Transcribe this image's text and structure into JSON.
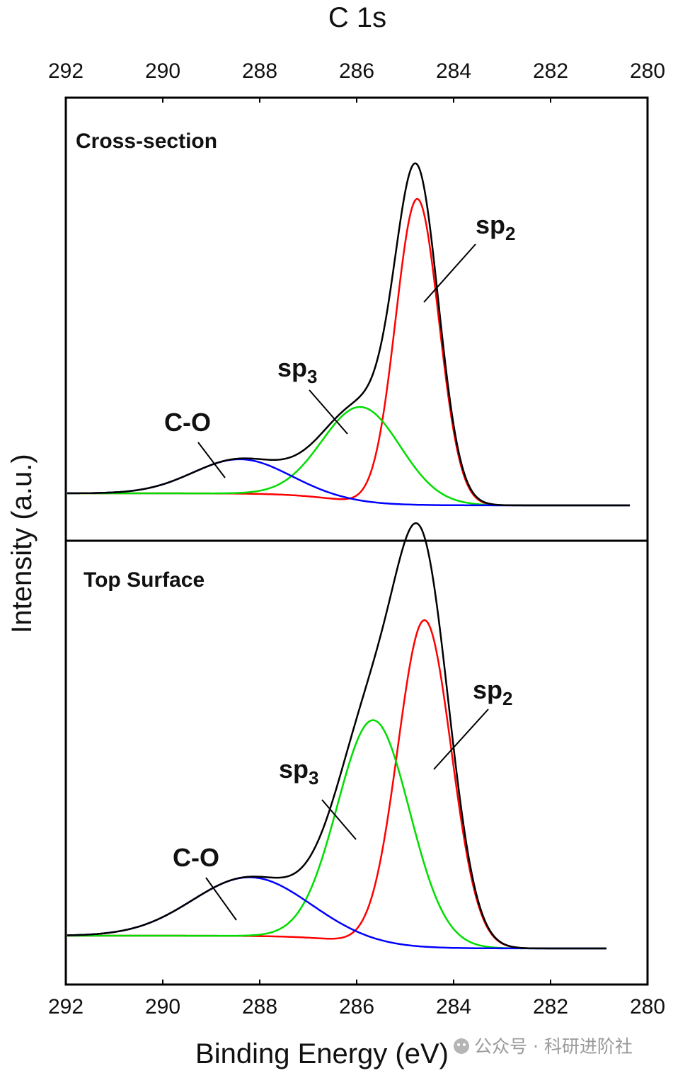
{
  "chart_data": {
    "type": "line",
    "title": "C 1s",
    "xlabel": "Binding Energy (eV)",
    "ylabel": "Intensity (a.u.)",
    "xlim": [
      292,
      280
    ],
    "xticks": [
      292,
      290,
      288,
      286,
      284,
      282,
      280
    ],
    "x_reversed": true,
    "panels": [
      {
        "label": "Cross-section",
        "baseline": {
          "start": 1.0,
          "end": 0.0,
          "center": 286.4,
          "width": 0.55
        },
        "components": [
          {
            "name": "sp2",
            "label_main": "sp",
            "label_sub": "2",
            "center": 284.75,
            "amplitude": 12.9,
            "fwhm": 1.05,
            "color": "#ff0000"
          },
          {
            "name": "sp3",
            "label_main": "sp",
            "label_sub": "3",
            "center": 285.9,
            "amplitude": 4.0,
            "fwhm": 1.9,
            "color": "#00dd00"
          },
          {
            "name": "C-O",
            "label_main": "C-O",
            "label_sub": "",
            "center": 288.4,
            "amplitude": 1.45,
            "fwhm": 2.3,
            "color": "#0000ff"
          }
        ],
        "envelope_color": "#000000"
      },
      {
        "label": "Top Surface",
        "baseline": {
          "start": 1.0,
          "end": 0.0,
          "center": 286.0,
          "width": 0.6
        },
        "components": [
          {
            "name": "sp2",
            "label_main": "sp",
            "label_sub": "2",
            "center": 284.6,
            "amplitude": 11.7,
            "fwhm": 1.3,
            "color": "#ff0000"
          },
          {
            "name": "sp3",
            "label_main": "sp",
            "label_sub": "3",
            "center": 285.65,
            "amplitude": 8.0,
            "fwhm": 1.75,
            "color": "#00dd00"
          },
          {
            "name": "C-O",
            "label_main": "C-O",
            "label_sub": "",
            "center": 288.2,
            "amplitude": 2.1,
            "fwhm": 2.8,
            "color": "#0000ff"
          }
        ],
        "envelope_color": "#000000"
      }
    ]
  },
  "watermark": "公众号 · 科研进阶社"
}
